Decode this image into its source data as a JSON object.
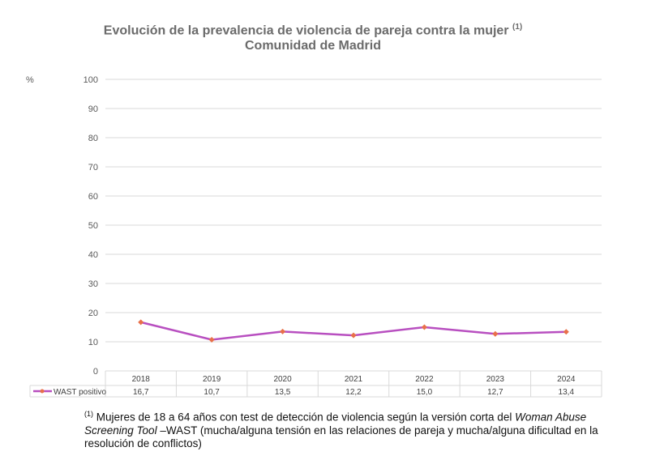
{
  "chart_data": {
    "type": "line",
    "title": "Evolución de la prevalencia de violencia de pareja contra la mujer",
    "title_note": "(1)",
    "subtitle": "Comunidad de Madrid",
    "ylabel": "%",
    "ylim": [
      0,
      100
    ],
    "yticks": [
      0,
      10,
      20,
      30,
      40,
      50,
      60,
      70,
      80,
      90,
      100
    ],
    "categories": [
      "2018",
      "2019",
      "2020",
      "2021",
      "2022",
      "2023",
      "2024"
    ],
    "series": [
      {
        "name": "WAST positivo",
        "values": [
          16.7,
          10.7,
          13.5,
          12.2,
          15.0,
          12.7,
          13.4
        ],
        "labels": [
          "16,7",
          "10,7",
          "13,5",
          "12,2",
          "15,0",
          "12,7",
          "13,4"
        ],
        "color": "#b84fc0",
        "marker_color": "#e8704a"
      }
    ],
    "grid": true,
    "legend": "data-table"
  },
  "footnote": {
    "mark": "(1)",
    "text1": " Mujeres de 18 a 64 años con test de detección de violencia según la versión corta del ",
    "italic1": "Woman Abuse Screening Tool",
    "text2": " –WAST (mucha/alguna tensión en las relaciones de pareja y mucha/alguna dificultad en la resolución de conflictos)"
  }
}
